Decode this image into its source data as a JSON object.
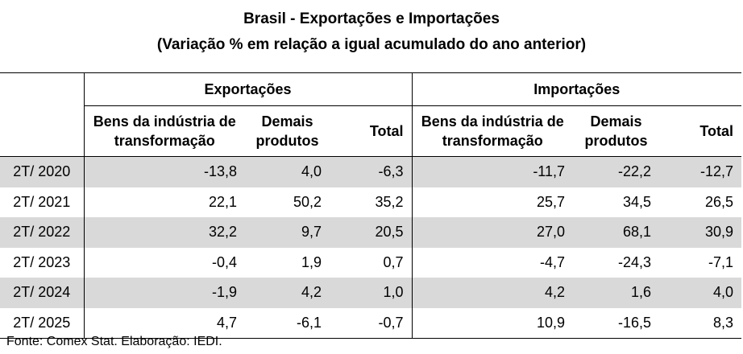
{
  "title": "Brasil - Exportações e Importações",
  "subtitle": "(Variação % em relação a igual acumulado do ano anterior)",
  "groups": {
    "export": "Exportações",
    "import": "Importações"
  },
  "columns": {
    "transform_line1": "Bens da indústria de",
    "transform_line2": "transformação",
    "other_line1": "Demais",
    "other_line2": "produtos",
    "total": "Total"
  },
  "source": "Fonte: Comex Stat. Elaboração: IEDI.",
  "chart_data": {
    "type": "table",
    "title": "Brasil - Exportações e Importações",
    "subtitle": "(Variação % em relação a igual acumulado do ano anterior)",
    "column_groups": [
      "Exportações",
      "Importações"
    ],
    "columns": [
      "Bens da indústria de transformação",
      "Demais produtos",
      "Total",
      "Bens da indústria de transformação",
      "Demais produtos",
      "Total"
    ],
    "rows": [
      {
        "label": "2T/ 2020",
        "cells": [
          "-13,8",
          "4,0",
          "-6,3",
          "-11,7",
          "-22,2",
          "-12,7"
        ]
      },
      {
        "label": "2T/ 2021",
        "cells": [
          "22,1",
          "50,2",
          "35,2",
          "25,7",
          "34,5",
          "26,5"
        ]
      },
      {
        "label": "2T/ 2022",
        "cells": [
          "32,2",
          "9,7",
          "20,5",
          "27,0",
          "68,1",
          "30,9"
        ]
      },
      {
        "label": "2T/ 2023",
        "cells": [
          "-0,4",
          "1,9",
          "0,7",
          "-4,7",
          "-24,3",
          "-7,1"
        ]
      },
      {
        "label": "2T/ 2024",
        "cells": [
          "-1,9",
          "4,2",
          "1,0",
          "4,2",
          "1,6",
          "4,0"
        ]
      },
      {
        "label": "2T/ 2025",
        "cells": [
          "4,7",
          "-6,1",
          "-0,7",
          "10,9",
          "-16,5",
          "8,3"
        ]
      }
    ],
    "shaded_rows": [
      0,
      2,
      4
    ],
    "shade_color": "#d9d9d9"
  }
}
